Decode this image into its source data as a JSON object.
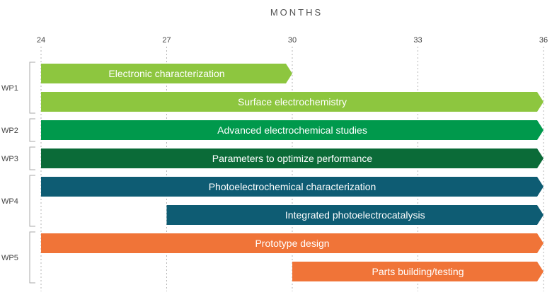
{
  "chart_data": {
    "type": "gantt",
    "title": "",
    "xlabel": "MONTHS",
    "xlim": [
      24,
      36
    ],
    "x_ticks": [
      24,
      27,
      30,
      33,
      36
    ],
    "groups": [
      {
        "name": "WP1",
        "color": "#8dc63f",
        "tasks": [
          {
            "label": "Electronic characterization",
            "start": 24,
            "end": 30
          },
          {
            "label": "Surface electrochemistry",
            "start": 24,
            "end": 36
          }
        ]
      },
      {
        "name": "WP2",
        "color": "#00994c",
        "tasks": [
          {
            "label": "Advanced electrochemical studies",
            "start": 24,
            "end": 36
          }
        ]
      },
      {
        "name": "WP3",
        "color": "#0b6b38",
        "tasks": [
          {
            "label": "Parameters to optimize performance",
            "start": 24,
            "end": 36
          }
        ]
      },
      {
        "name": "WP4",
        "color": "#0e5c73",
        "tasks": [
          {
            "label": "Photoelectrochemical characterization",
            "start": 24,
            "end": 36
          },
          {
            "label": "Integrated photoelectrocatalysis",
            "start": 27,
            "end": 36
          }
        ]
      },
      {
        "name": "WP5",
        "color": "#f07438",
        "tasks": [
          {
            "label": "Prototype design",
            "start": 24,
            "end": 36
          },
          {
            "label": "Parts building/testing",
            "start": 30,
            "end": 36
          }
        ]
      }
    ]
  }
}
